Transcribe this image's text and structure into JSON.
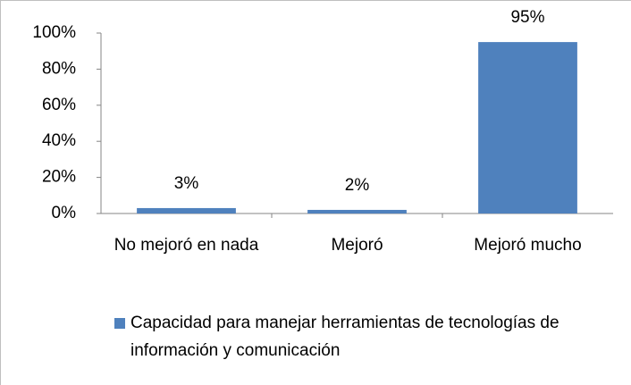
{
  "chart_data": {
    "type": "bar",
    "categories": [
      "No mejoró en nada",
      "Mejoró",
      "Mejoró mucho"
    ],
    "series": [
      {
        "name": "Capacidad para manejar herramientas de tecnologías de información y comunicación",
        "color": "#4f81bd",
        "values": [
          3,
          2,
          95
        ],
        "value_labels": [
          "3%",
          "2%",
          "95%"
        ]
      }
    ],
    "ylim": [
      0,
      100
    ],
    "yticks": [
      {
        "value": 0,
        "label": "0%"
      },
      {
        "value": 20,
        "label": "20%"
      },
      {
        "value": 40,
        "label": "40%"
      },
      {
        "value": 60,
        "label": "60%"
      },
      {
        "value": 80,
        "label": "80%"
      },
      {
        "value": 100,
        "label": "100%"
      }
    ],
    "grid": false,
    "legend": "bottom"
  }
}
